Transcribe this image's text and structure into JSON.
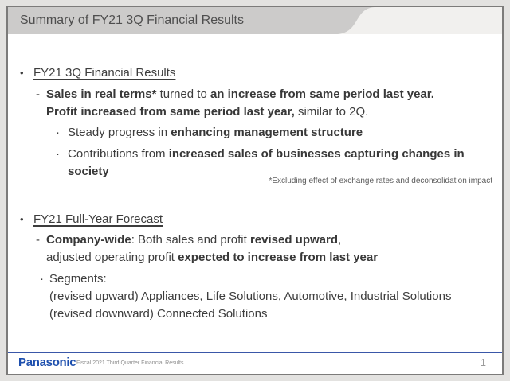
{
  "header": {
    "title": "Summary of FY21 3Q Financial Results",
    "band_color": "#cccbca",
    "band_accent_color": "#f1f0ee",
    "title_color": "#4e4e4e"
  },
  "content": {
    "text_color": "#3d3d3d",
    "sections": [
      {
        "marker": "•",
        "heading": "FY21 3Q Financial Results",
        "sub_marker": "-",
        "sub_runs": [
          {
            "t": "Sales in real terms*",
            "b": true
          },
          {
            "t": " turned to ",
            "b": false
          },
          {
            "t": "an increase from same period last year.",
            "b": true
          },
          {
            "t": "\n",
            "b": false
          },
          {
            "t": "Profit increased from same period last year,",
            "b": true
          },
          {
            "t": " similar to 2Q.",
            "b": false
          }
        ],
        "points": [
          {
            "marker": "·",
            "runs": [
              {
                "t": "Steady progress in ",
                "b": false
              },
              {
                "t": "enhancing management structure",
                "b": true
              }
            ]
          },
          {
            "marker": "·",
            "runs": [
              {
                "t": "Contributions from ",
                "b": false
              },
              {
                "t": "increased sales of businesses capturing changes in\nsociety",
                "b": true
              }
            ]
          }
        ]
      },
      {
        "marker": "•",
        "heading": "FY21 Full-Year Forecast",
        "sub_marker": "-",
        "sub_runs": [
          {
            "t": "Company-wide",
            "b": true
          },
          {
            "t": ": Both sales and profit ",
            "b": false
          },
          {
            "t": "revised upward",
            "b": true
          },
          {
            "t": ",\nadjusted operating profit ",
            "b": false
          },
          {
            "t": "expected to increase from last year",
            "b": true
          }
        ],
        "points": [
          {
            "marker": "·",
            "runs": [
              {
                "t": "Segments:\n(revised upward) Appliances, Life Solutions, Automotive, Industrial Solutions\n(revised downward) Connected Solutions",
                "b": false
              }
            ]
          }
        ]
      }
    ],
    "footnote": "*Excluding effect of exchange rates and deconsolidation impact"
  },
  "footer": {
    "logo_text": "Panasonic",
    "logo_color": "#1d4fae",
    "caption": "Fiscal 2021 Third Quarter Financial Results",
    "page_number": "1",
    "rule_color": "#3a57a8"
  }
}
